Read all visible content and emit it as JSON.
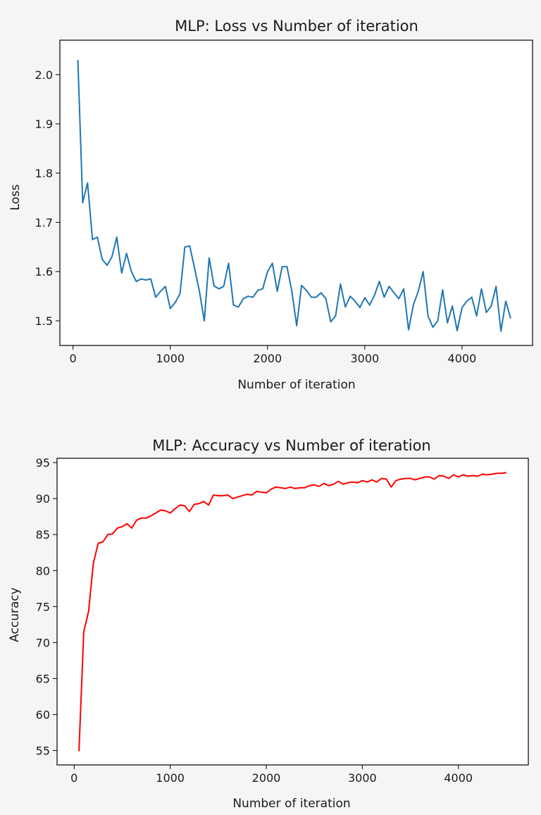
{
  "chart_data": [
    {
      "type": "line",
      "title": "MLP: Loss vs Number of iteration",
      "xlabel": "Number of iteration",
      "ylabel": "Loss",
      "xlim": [
        -135,
        4725
      ],
      "ylim": [
        1.45,
        2.07
      ],
      "xticks": [
        0,
        1000,
        2000,
        3000,
        4000
      ],
      "yticks": [
        1.5,
        1.6,
        1.7,
        1.8,
        1.9,
        2.0
      ],
      "xtick_labels": [
        "0",
        "1000",
        "2000",
        "3000",
        "4000"
      ],
      "ytick_labels": [
        "1.5",
        "1.6",
        "1.7",
        "1.8",
        "1.9",
        "2.0"
      ],
      "grid": false,
      "color": "#1f77b4",
      "x": [
        50,
        100,
        150,
        200,
        250,
        300,
        350,
        400,
        450,
        500,
        550,
        600,
        650,
        700,
        750,
        800,
        850,
        900,
        950,
        1000,
        1050,
        1100,
        1150,
        1200,
        1250,
        1300,
        1350,
        1400,
        1450,
        1500,
        1550,
        1600,
        1650,
        1700,
        1750,
        1800,
        1850,
        1900,
        1950,
        2000,
        2050,
        2100,
        2150,
        2200,
        2250,
        2300,
        2350,
        2400,
        2450,
        2500,
        2550,
        2600,
        2650,
        2700,
        2750,
        2800,
        2850,
        2900,
        2950,
        3000,
        3050,
        3100,
        3150,
        3200,
        3250,
        3300,
        3350,
        3400,
        3450,
        3500,
        3550,
        3600,
        3650,
        3700,
        3750,
        3800,
        3850,
        3900,
        3950,
        4000,
        4050,
        4100,
        4150,
        4200,
        4250,
        4300,
        4350,
        4400,
        4450,
        4500
      ],
      "y": [
        2.03,
        1.74,
        1.78,
        1.665,
        1.67,
        1.625,
        1.613,
        1.63,
        1.67,
        1.597,
        1.637,
        1.6,
        1.58,
        1.585,
        1.583,
        1.585,
        1.548,
        1.56,
        1.57,
        1.525,
        1.537,
        1.555,
        1.65,
        1.652,
        1.607,
        1.56,
        1.5,
        1.628,
        1.571,
        1.565,
        1.57,
        1.617,
        1.532,
        1.528,
        1.545,
        1.55,
        1.548,
        1.562,
        1.565,
        1.6,
        1.617,
        1.56,
        1.61,
        1.61,
        1.56,
        1.49,
        1.572,
        1.562,
        1.548,
        1.548,
        1.557,
        1.545,
        1.498,
        1.51,
        1.575,
        1.528,
        1.55,
        1.54,
        1.527,
        1.547,
        1.532,
        1.552,
        1.58,
        1.548,
        1.57,
        1.557,
        1.545,
        1.565,
        1.482,
        1.533,
        1.56,
        1.6,
        1.51,
        1.487,
        1.5,
        1.563,
        1.496,
        1.53,
        1.48,
        1.527,
        1.54,
        1.548,
        1.51,
        1.565,
        1.517,
        1.53,
        1.57,
        1.479,
        1.54,
        1.505
      ]
    },
    {
      "type": "line",
      "title": "MLP: Accuracy vs Number of iteration",
      "xlabel": "Number of iteration",
      "ylabel": "Accuracy",
      "xlim": [
        -178,
        4728
      ],
      "ylim": [
        53.0,
        95.6
      ],
      "xticks": [
        0,
        1000,
        2000,
        3000,
        4000
      ],
      "yticks": [
        55,
        60,
        65,
        70,
        75,
        80,
        85,
        90,
        95
      ],
      "xtick_labels": [
        "0",
        "1000",
        "2000",
        "3000",
        "4000"
      ],
      "ytick_labels": [
        "55",
        "60",
        "65",
        "70",
        "75",
        "80",
        "85",
        "90",
        "95"
      ],
      "grid": false,
      "color": "#ff0000",
      "x": [
        50,
        100,
        150,
        200,
        250,
        300,
        350,
        400,
        450,
        500,
        550,
        600,
        650,
        700,
        750,
        800,
        850,
        900,
        950,
        1000,
        1050,
        1100,
        1150,
        1200,
        1250,
        1300,
        1350,
        1400,
        1450,
        1500,
        1550,
        1600,
        1650,
        1700,
        1750,
        1800,
        1850,
        1900,
        1950,
        2000,
        2050,
        2100,
        2150,
        2200,
        2250,
        2300,
        2350,
        2400,
        2450,
        2500,
        2550,
        2600,
        2650,
        2700,
        2750,
        2800,
        2850,
        2900,
        2950,
        3000,
        3050,
        3100,
        3150,
        3200,
        3250,
        3300,
        3350,
        3400,
        3450,
        3500,
        3550,
        3600,
        3650,
        3700,
        3750,
        3800,
        3850,
        3900,
        3950,
        4000,
        4050,
        4100,
        4150,
        4200,
        4250,
        4300,
        4350,
        4400,
        4450,
        4500
      ],
      "y": [
        54.9,
        71.5,
        74.3,
        81.0,
        83.8,
        84.0,
        85.0,
        85.1,
        85.9,
        86.1,
        86.5,
        85.9,
        87.0,
        87.3,
        87.3,
        87.6,
        88.0,
        88.4,
        88.3,
        88.0,
        88.6,
        89.1,
        89.0,
        88.2,
        89.2,
        89.3,
        89.6,
        89.1,
        90.5,
        90.4,
        90.4,
        90.5,
        90.0,
        90.2,
        90.4,
        90.6,
        90.5,
        91.0,
        90.9,
        90.8,
        91.3,
        91.6,
        91.5,
        91.4,
        91.6,
        91.4,
        91.5,
        91.5,
        91.8,
        91.9,
        91.7,
        92.1,
        91.8,
        92.0,
        92.4,
        92.0,
        92.2,
        92.3,
        92.2,
        92.5,
        92.3,
        92.6,
        92.3,
        92.8,
        92.7,
        91.6,
        92.5,
        92.7,
        92.8,
        92.8,
        92.6,
        92.8,
        93.0,
        93.0,
        92.7,
        93.2,
        93.1,
        92.8,
        93.3,
        93.0,
        93.3,
        93.1,
        93.2,
        93.1,
        93.4,
        93.3,
        93.4,
        93.5,
        93.5,
        93.6
      ]
    }
  ]
}
